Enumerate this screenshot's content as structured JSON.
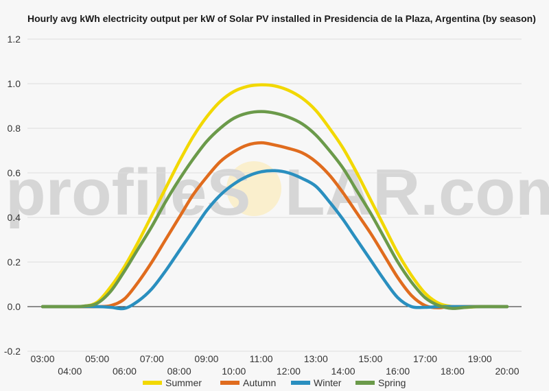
{
  "chart_data": {
    "type": "line",
    "title": "Hourly avg kWh electricity output per kW of Solar PV installed in Presidencia de la Plaza, Argentina (by season)",
    "watermark": {
      "left": "profileS",
      "right": "LAR.com"
    },
    "x_tick_labels": [
      "03:00",
      "04:00",
      "05:00",
      "06:00",
      "07:00",
      "08:00",
      "09:00",
      "10:00",
      "11:00",
      "12:00",
      "13:00",
      "14:00",
      "15:00",
      "16:00",
      "17:00",
      "18:00",
      "19:00",
      "20:00"
    ],
    "y_ticks": [
      -0.2,
      0.0,
      0.2,
      0.4,
      0.6,
      0.8,
      1.0,
      1.2
    ],
    "y_tick_labels": [
      "-0.2",
      "0.0",
      "0.2",
      "0.4",
      "0.6",
      "0.8",
      "1.0",
      "1.2"
    ],
    "ylim": [
      -0.2,
      1.2
    ],
    "xlim": [
      3,
      20
    ],
    "grid": true,
    "legend_position": "bottom",
    "series": [
      {
        "name": "Summer",
        "color": "#f2d800",
        "points": [
          [
            3,
            0
          ],
          [
            4,
            0
          ],
          [
            4.5,
            0.002
          ],
          [
            5,
            0.02
          ],
          [
            5.5,
            0.09
          ],
          [
            6,
            0.18
          ],
          [
            6.5,
            0.29
          ],
          [
            7,
            0.41
          ],
          [
            7.5,
            0.53
          ],
          [
            8,
            0.65
          ],
          [
            8.5,
            0.76
          ],
          [
            9,
            0.85
          ],
          [
            9.5,
            0.92
          ],
          [
            10,
            0.965
          ],
          [
            10.5,
            0.988
          ],
          [
            11,
            0.995
          ],
          [
            11.5,
            0.99
          ],
          [
            12,
            0.97
          ],
          [
            12.5,
            0.935
          ],
          [
            13,
            0.88
          ],
          [
            13.5,
            0.8
          ],
          [
            14,
            0.71
          ],
          [
            14.5,
            0.6
          ],
          [
            15,
            0.48
          ],
          [
            15.5,
            0.36
          ],
          [
            16,
            0.24
          ],
          [
            16.5,
            0.14
          ],
          [
            17,
            0.06
          ],
          [
            17.5,
            0.015
          ],
          [
            18,
            0
          ],
          [
            18.5,
            -0.003
          ],
          [
            19,
            0
          ],
          [
            20,
            0
          ]
        ]
      },
      {
        "name": "Autumn",
        "color": "#e06c1e",
        "points": [
          [
            3,
            0
          ],
          [
            4,
            0
          ],
          [
            5,
            0
          ],
          [
            5.5,
            0.005
          ],
          [
            6,
            0.035
          ],
          [
            6.5,
            0.11
          ],
          [
            7,
            0.2
          ],
          [
            7.5,
            0.3
          ],
          [
            8,
            0.4
          ],
          [
            8.5,
            0.5
          ],
          [
            9,
            0.58
          ],
          [
            9.5,
            0.65
          ],
          [
            10,
            0.695
          ],
          [
            10.5,
            0.725
          ],
          [
            11,
            0.735
          ],
          [
            11.5,
            0.725
          ],
          [
            12,
            0.71
          ],
          [
            12.5,
            0.69
          ],
          [
            13,
            0.65
          ],
          [
            13.5,
            0.59
          ],
          [
            14,
            0.51
          ],
          [
            14.5,
            0.42
          ],
          [
            15,
            0.33
          ],
          [
            15.5,
            0.23
          ],
          [
            16,
            0.13
          ],
          [
            16.5,
            0.05
          ],
          [
            17,
            0.005
          ],
          [
            17.5,
            -0.005
          ],
          [
            18,
            0
          ],
          [
            20,
            0
          ]
        ]
      },
      {
        "name": "Winter",
        "color": "#2a8fbf",
        "points": [
          [
            3,
            0
          ],
          [
            4,
            0
          ],
          [
            5,
            0
          ],
          [
            5.5,
            -0.003
          ],
          [
            6,
            -0.008
          ],
          [
            6.5,
            0.025
          ],
          [
            7,
            0.08
          ],
          [
            7.5,
            0.16
          ],
          [
            8,
            0.25
          ],
          [
            8.5,
            0.34
          ],
          [
            9,
            0.43
          ],
          [
            9.5,
            0.5
          ],
          [
            10,
            0.55
          ],
          [
            10.5,
            0.585
          ],
          [
            11,
            0.605
          ],
          [
            11.5,
            0.61
          ],
          [
            12,
            0.6
          ],
          [
            12.5,
            0.575
          ],
          [
            13,
            0.54
          ],
          [
            13.5,
            0.47
          ],
          [
            14,
            0.39
          ],
          [
            14.5,
            0.3
          ],
          [
            15,
            0.21
          ],
          [
            15.5,
            0.12
          ],
          [
            16,
            0.04
          ],
          [
            16.5,
            0
          ],
          [
            17,
            -0.003
          ],
          [
            17.5,
            0
          ],
          [
            18,
            0
          ],
          [
            20,
            0
          ]
        ]
      },
      {
        "name": "Spring",
        "color": "#6b9a4a",
        "points": [
          [
            3,
            0
          ],
          [
            4,
            0
          ],
          [
            4.5,
            0.002
          ],
          [
            5,
            0.015
          ],
          [
            5.5,
            0.07
          ],
          [
            6,
            0.16
          ],
          [
            6.5,
            0.26
          ],
          [
            7,
            0.36
          ],
          [
            7.5,
            0.47
          ],
          [
            8,
            0.57
          ],
          [
            8.5,
            0.66
          ],
          [
            9,
            0.74
          ],
          [
            9.5,
            0.8
          ],
          [
            10,
            0.845
          ],
          [
            10.5,
            0.868
          ],
          [
            11,
            0.875
          ],
          [
            11.5,
            0.868
          ],
          [
            12,
            0.85
          ],
          [
            12.5,
            0.82
          ],
          [
            13,
            0.77
          ],
          [
            13.5,
            0.7
          ],
          [
            14,
            0.62
          ],
          [
            14.5,
            0.52
          ],
          [
            15,
            0.42
          ],
          [
            15.5,
            0.31
          ],
          [
            16,
            0.2
          ],
          [
            16.5,
            0.11
          ],
          [
            17,
            0.04
          ],
          [
            17.5,
            0.005
          ],
          [
            18,
            -0.008
          ],
          [
            18.5,
            -0.003
          ],
          [
            19,
            0
          ],
          [
            20,
            0
          ]
        ]
      }
    ]
  }
}
